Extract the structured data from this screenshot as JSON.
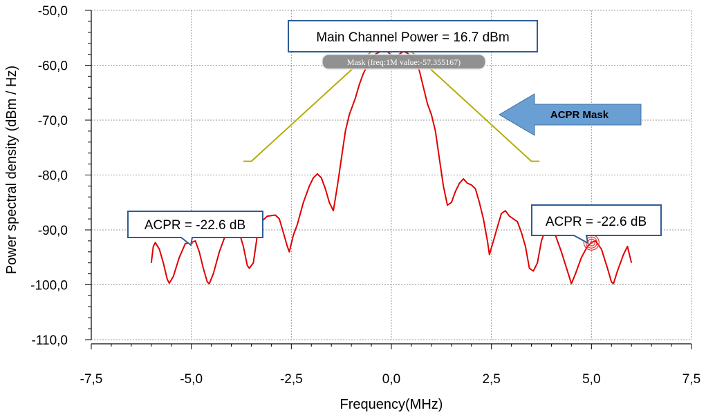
{
  "chart_data": {
    "type": "line",
    "xlabel": "Frequency(MHz)",
    "ylabel": "Power spectral density (dBm / Hz)",
    "xlim": [
      -7.5,
      7.5
    ],
    "ylim": [
      -110,
      -50
    ],
    "x_ticks": [
      "-7,5",
      "-5,0",
      "-2,5",
      "0,0",
      "2,5",
      "5,0",
      "7,5"
    ],
    "x_tick_values": [
      -7.5,
      -5,
      -2.5,
      0,
      2.5,
      5,
      7.5
    ],
    "y_ticks": [
      "-50,0",
      "-60,0",
      "-70,0",
      "-80,0",
      "-90,0",
      "-100,0",
      "-110,0"
    ],
    "y_tick_values": [
      -50,
      -60,
      -70,
      -80,
      -90,
      -100,
      -110
    ],
    "grid": true,
    "colors": {
      "spectrum": "#e00000",
      "mask": "#b3ad00",
      "callout_border": "#2e5c96",
      "arrow_fill": "#6a9fd4",
      "marker": "#e83030"
    },
    "series": [
      {
        "key": "mask",
        "points": [
          [
            -3.7,
            -77.5
          ],
          [
            -3.5,
            -77.5
          ],
          [
            -0.5,
            -57.5
          ],
          [
            0.5,
            -57.5
          ],
          [
            3.5,
            -77.5
          ],
          [
            3.7,
            -77.5
          ]
        ]
      },
      {
        "key": "spectrum",
        "points": [
          [
            -6.0,
            -96.0
          ],
          [
            -5.95,
            -93.0
          ],
          [
            -5.9,
            -92.3
          ],
          [
            -5.8,
            -93.5
          ],
          [
            -5.7,
            -96.0
          ],
          [
            -5.6,
            -99.0
          ],
          [
            -5.55,
            -99.7
          ],
          [
            -5.45,
            -98.5
          ],
          [
            -5.3,
            -95.0
          ],
          [
            -5.15,
            -92.5
          ],
          [
            -5.0,
            -92.3
          ],
          [
            -4.9,
            -92.0
          ],
          [
            -4.8,
            -94.0
          ],
          [
            -4.7,
            -97.0
          ],
          [
            -4.6,
            -99.5
          ],
          [
            -4.55,
            -99.8
          ],
          [
            -4.45,
            -98.0
          ],
          [
            -4.3,
            -94.0
          ],
          [
            -4.15,
            -91.0
          ],
          [
            -4.0,
            -89.5
          ],
          [
            -3.9,
            -89.5
          ],
          [
            -3.8,
            -90.5
          ],
          [
            -3.7,
            -93.0
          ],
          [
            -3.6,
            -96.5
          ],
          [
            -3.55,
            -97.0
          ],
          [
            -3.45,
            -96.0
          ],
          [
            -3.35,
            -91.0
          ],
          [
            -3.25,
            -88.5
          ],
          [
            -3.1,
            -87.5
          ],
          [
            -2.9,
            -87.3
          ],
          [
            -2.8,
            -88.0
          ],
          [
            -2.7,
            -90.5
          ],
          [
            -2.6,
            -93.0
          ],
          [
            -2.55,
            -94.0
          ],
          [
            -2.45,
            -91.0
          ],
          [
            -2.35,
            -89.0
          ],
          [
            -2.2,
            -85.0
          ],
          [
            -2.05,
            -82.0
          ],
          [
            -1.95,
            -80.5
          ],
          [
            -1.85,
            -79.8
          ],
          [
            -1.75,
            -80.5
          ],
          [
            -1.65,
            -82.5
          ],
          [
            -1.55,
            -85.0
          ],
          [
            -1.45,
            -86.5
          ],
          [
            -1.35,
            -82.0
          ],
          [
            -1.25,
            -77.0
          ],
          [
            -1.15,
            -72.0
          ],
          [
            -1.05,
            -69.0
          ],
          [
            -0.9,
            -66.0
          ],
          [
            -0.8,
            -63.5
          ],
          [
            -0.7,
            -61.5
          ],
          [
            -0.6,
            -60.0
          ],
          [
            -0.5,
            -58.8
          ],
          [
            -0.4,
            -58.0
          ],
          [
            -0.3,
            -57.6
          ],
          [
            -0.2,
            -57.4
          ],
          [
            -0.1,
            -57.5
          ],
          [
            0.0,
            -58.2
          ],
          [
            0.1,
            -58.5
          ],
          [
            0.2,
            -58.0
          ],
          [
            0.3,
            -57.5
          ],
          [
            0.4,
            -57.8
          ],
          [
            0.5,
            -58.5
          ],
          [
            0.6,
            -59.5
          ],
          [
            0.7,
            -61.0
          ],
          [
            0.8,
            -64.0
          ],
          [
            0.9,
            -67.0
          ],
          [
            1.0,
            -69.0
          ],
          [
            1.1,
            -72.0
          ],
          [
            1.2,
            -77.0
          ],
          [
            1.3,
            -82.0
          ],
          [
            1.4,
            -85.5
          ],
          [
            1.5,
            -85.0
          ],
          [
            1.6,
            -83.0
          ],
          [
            1.7,
            -81.5
          ],
          [
            1.8,
            -80.7
          ],
          [
            1.9,
            -81.5
          ],
          [
            2.0,
            -81.8
          ],
          [
            2.1,
            -82.5
          ],
          [
            2.2,
            -85.0
          ],
          [
            2.3,
            -88.0
          ],
          [
            2.4,
            -92.0
          ],
          [
            2.45,
            -94.5
          ],
          [
            2.55,
            -92.0
          ],
          [
            2.65,
            -89.5
          ],
          [
            2.75,
            -87.0
          ],
          [
            2.85,
            -86.5
          ],
          [
            2.95,
            -87.5
          ],
          [
            3.05,
            -88.0
          ],
          [
            3.15,
            -88.5
          ],
          [
            3.25,
            -90.5
          ],
          [
            3.35,
            -93.0
          ],
          [
            3.45,
            -97.0
          ],
          [
            3.55,
            -97.5
          ],
          [
            3.65,
            -96.0
          ],
          [
            3.75,
            -92.0
          ],
          [
            3.85,
            -90.0
          ],
          [
            3.95,
            -89.8
          ],
          [
            4.1,
            -91.0
          ],
          [
            4.25,
            -94.0
          ],
          [
            4.4,
            -97.5
          ],
          [
            4.5,
            -99.8
          ],
          [
            4.6,
            -98.0
          ],
          [
            4.75,
            -95.0
          ],
          [
            4.9,
            -93.0
          ],
          [
            5.0,
            -92.3
          ],
          [
            5.1,
            -92.0
          ],
          [
            5.25,
            -93.5
          ],
          [
            5.4,
            -97.0
          ],
          [
            5.5,
            -99.5
          ],
          [
            5.55,
            -99.8
          ],
          [
            5.65,
            -97.5
          ],
          [
            5.8,
            -94.5
          ],
          [
            5.9,
            -93.0
          ],
          [
            5.95,
            -94.5
          ],
          [
            6.0,
            -96.0
          ]
        ]
      }
    ],
    "annotations": {
      "main_power": "Main Channel Power = 16.7 dBm",
      "acpr_left": "ACPR = -22.6 dB",
      "acpr_right": "ACPR = -22.6 dB",
      "mask_tooltip": "Mask (freq:1M value:-57.355167)",
      "arrow_label": "ACPR Mask"
    },
    "markers": [
      {
        "label_key": "acpr_left",
        "x": -5.0,
        "y": -92.3
      },
      {
        "label_key": "acpr_right",
        "x": 5.0,
        "y": -92.3
      }
    ]
  }
}
